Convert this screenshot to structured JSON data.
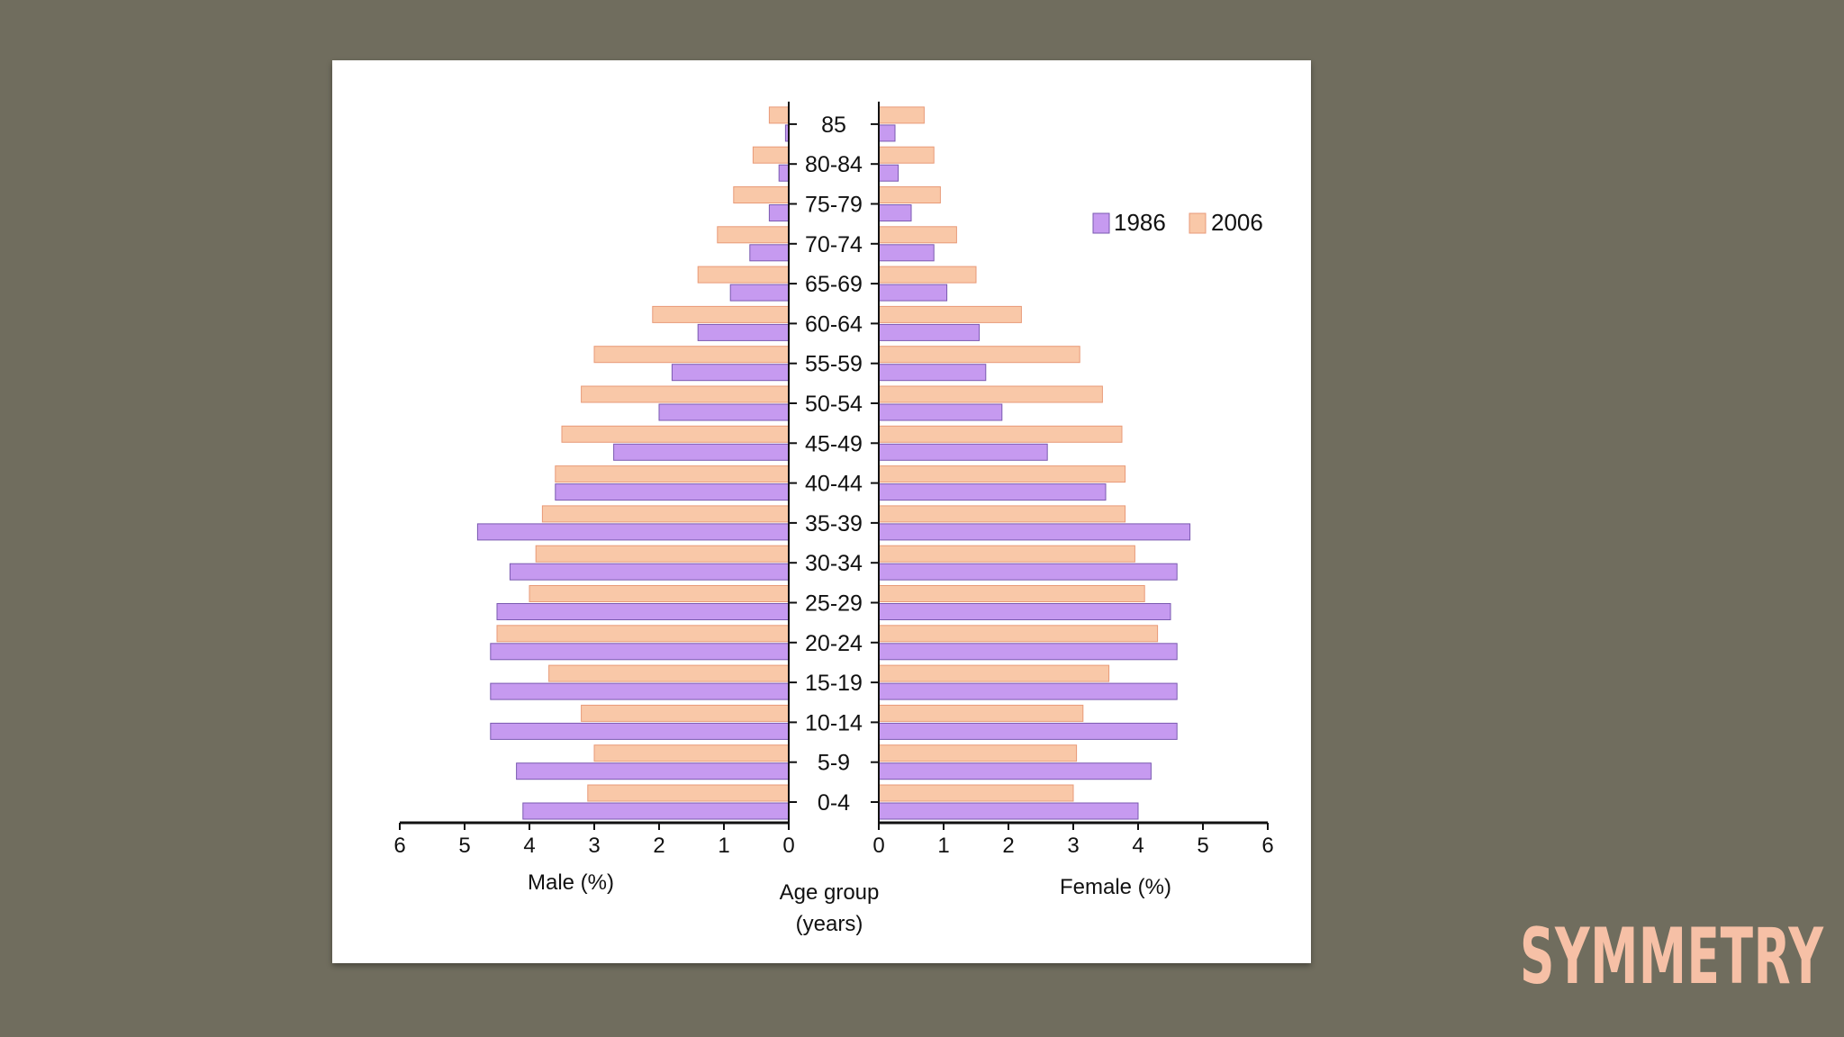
{
  "slide": {
    "title": "SYMMETRY"
  },
  "colors": {
    "c1986": "#c69af0",
    "c1986_edge": "#7a5ab0",
    "c2006": "#f9c8a8",
    "c2006_edge": "#e89a78",
    "axis": "#111111"
  },
  "chart_data": {
    "type": "bar",
    "subtype": "population-pyramid",
    "title": "",
    "categories": [
      "0-4",
      "5-9",
      "10-14",
      "15-19",
      "20-24",
      "25-29",
      "30-34",
      "35-39",
      "40-44",
      "45-49",
      "50-54",
      "55-59",
      "60-64",
      "65-69",
      "70-74",
      "75-79",
      "80-84",
      "85"
    ],
    "series": [
      {
        "name": "1986",
        "side": "male",
        "values": [
          4.1,
          4.2,
          4.6,
          4.6,
          4.6,
          4.5,
          4.3,
          4.8,
          3.6,
          2.7,
          2.0,
          1.8,
          1.4,
          0.9,
          0.6,
          0.3,
          0.15,
          0.05
        ]
      },
      {
        "name": "2006",
        "side": "male",
        "values": [
          3.1,
          3.0,
          3.2,
          3.7,
          4.5,
          4.0,
          3.9,
          3.8,
          3.6,
          3.5,
          3.2,
          3.0,
          2.1,
          1.4,
          1.1,
          0.85,
          0.55,
          0.3
        ]
      },
      {
        "name": "1986",
        "side": "female",
        "values": [
          4.0,
          4.2,
          4.6,
          4.6,
          4.6,
          4.5,
          4.6,
          4.8,
          3.5,
          2.6,
          1.9,
          1.65,
          1.55,
          1.05,
          0.85,
          0.5,
          0.3,
          0.25
        ]
      },
      {
        "name": "2006",
        "side": "female",
        "values": [
          3.0,
          3.05,
          3.15,
          3.55,
          4.3,
          4.1,
          3.95,
          3.8,
          3.8,
          3.75,
          3.45,
          3.1,
          2.2,
          1.5,
          1.2,
          0.95,
          0.85,
          0.7
        ]
      }
    ],
    "legend": [
      "1986",
      "2006"
    ],
    "legend_position": "top-right",
    "x_ticks": [
      "6",
      "5",
      "4",
      "3",
      "2",
      "1",
      "0"
    ],
    "x_ticks_right": [
      "0",
      "1",
      "2",
      "3",
      "4",
      "5",
      "6"
    ],
    "xlim": [
      0,
      6
    ],
    "xlabel_left": "Male (%)",
    "xlabel_right": "Female (%)",
    "center_label_1": "Age group",
    "center_label_2": "(years)"
  }
}
